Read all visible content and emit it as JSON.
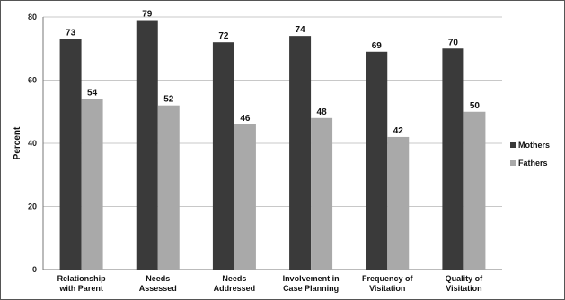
{
  "chart_data": {
    "type": "bar",
    "title": "",
    "xlabel": "",
    "ylabel": "Percent",
    "ylim": [
      0,
      80
    ],
    "yticks": [
      0,
      20,
      40,
      60,
      80
    ],
    "grid": true,
    "legend_position": "right",
    "categories": [
      [
        "Relationship",
        "with Parent"
      ],
      [
        "Needs",
        "Assessed"
      ],
      [
        "Needs",
        "Addressed"
      ],
      [
        "Involvement in",
        "Case Planning"
      ],
      [
        "Frequency of",
        "Visitation"
      ],
      [
        "Quality of",
        "Visitation"
      ]
    ],
    "series": [
      {
        "name": "Mothers",
        "color": "#3a3a3a",
        "values": [
          73,
          79,
          72,
          74,
          69,
          70
        ]
      },
      {
        "name": "Fathers",
        "color": "#a9a9a9",
        "values": [
          54,
          52,
          46,
          48,
          42,
          50
        ]
      }
    ]
  }
}
